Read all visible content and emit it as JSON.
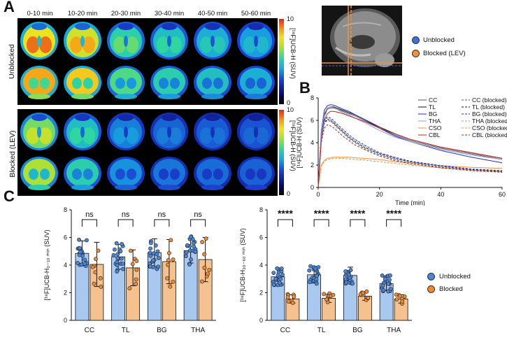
{
  "panel_labels": {
    "a": "A",
    "b": "B",
    "c": "C"
  },
  "panel_a": {
    "time_labels": [
      "0-10 min",
      "10-20 min",
      "20-30 min",
      "30-40 min",
      "40-50 min",
      "50-60 min"
    ],
    "row_labels": [
      "Unblocked",
      "Blocked (LEV)"
    ],
    "colorbar": {
      "max": "10",
      "min": "0",
      "label": "[¹⁸F]UCB-H (SUV)"
    },
    "heat_levels_top": [
      0.95,
      0.9,
      0.62,
      0.55,
      0.5,
      0.45
    ],
    "heat_levels_bottom": [
      0.75,
      0.55,
      0.38,
      0.32,
      0.3,
      0.28
    ]
  },
  "panel_b_legend": {
    "unblocked": "Unblocked",
    "blocked": "Blocked (LEV)",
    "unblocked_color": "#3f6fd9",
    "blocked_color": "#f0923a"
  },
  "chart_data": [
    {
      "type": "line",
      "ylabel": "[¹⁸F]UCB-H (SUV)",
      "xlabel": "Time (min)",
      "xlim": [
        0,
        60
      ],
      "ylim": [
        0,
        8
      ],
      "xticks": [
        "0",
        "20",
        "40",
        "60"
      ],
      "yticks": [
        "0",
        "2",
        "4",
        "6",
        "8"
      ],
      "x": [
        0,
        1,
        2,
        3,
        4,
        5,
        6,
        8,
        10,
        12,
        15,
        20,
        25,
        30,
        40,
        50,
        60
      ],
      "series": [
        {
          "name": "CC",
          "color": "#555555",
          "dash": false,
          "values": [
            0,
            4.5,
            6.4,
            7.0,
            7.1,
            7.1,
            7.0,
            6.8,
            6.6,
            6.4,
            6.0,
            5.3,
            4.7,
            4.2,
            3.5,
            3.0,
            2.5
          ]
        },
        {
          "name": "TL",
          "color": "#111111",
          "dash": false,
          "values": [
            0,
            4.6,
            6.5,
            7.1,
            7.2,
            7.2,
            7.1,
            6.9,
            6.7,
            6.5,
            6.1,
            5.4,
            4.8,
            4.3,
            3.6,
            3.1,
            2.6
          ]
        },
        {
          "name": "BG",
          "color": "#2a2ad6",
          "dash": false,
          "values": [
            0,
            5.0,
            6.9,
            7.3,
            7.4,
            7.35,
            7.25,
            7.0,
            6.8,
            6.5,
            6.1,
            5.3,
            4.6,
            4.1,
            3.3,
            2.7,
            2.2
          ]
        },
        {
          "name": "THA",
          "color": "#8aa3c8",
          "dash": false,
          "values": [
            0,
            4.8,
            6.6,
            7.1,
            7.2,
            7.15,
            7.0,
            6.7,
            6.5,
            6.2,
            5.8,
            5.1,
            4.5,
            4.1,
            3.4,
            2.9,
            2.5
          ]
        },
        {
          "name": "CSO",
          "color": "#f0923a",
          "dash": false,
          "values": [
            0,
            2.0,
            2.4,
            2.6,
            2.65,
            2.7,
            2.7,
            2.7,
            2.7,
            2.65,
            2.6,
            2.5,
            2.3,
            2.2,
            1.95,
            1.8,
            1.7
          ]
        },
        {
          "name": "CBL",
          "color": "#c0201b",
          "dash": false,
          "values": [
            0,
            4.2,
            6.0,
            6.6,
            6.8,
            6.8,
            6.75,
            6.6,
            6.4,
            6.2,
            5.9,
            5.3,
            4.8,
            4.3,
            3.6,
            3.1,
            2.6
          ]
        },
        {
          "name": "CC (blocked)",
          "color": "#555555",
          "dash": true,
          "values": [
            0,
            4.3,
            5.7,
            6.0,
            5.9,
            5.7,
            5.4,
            4.9,
            4.4,
            4.0,
            3.5,
            2.9,
            2.5,
            2.2,
            1.8,
            1.55,
            1.4
          ]
        },
        {
          "name": "TL (blocked)",
          "color": "#111111",
          "dash": true,
          "values": [
            0,
            4.4,
            5.8,
            6.1,
            6.0,
            5.8,
            5.5,
            5.0,
            4.5,
            4.1,
            3.6,
            3.0,
            2.6,
            2.3,
            1.9,
            1.6,
            1.45
          ]
        },
        {
          "name": "BG (blocked)",
          "color": "#2a2ad6",
          "dash": true,
          "values": [
            0,
            4.6,
            6.0,
            6.3,
            6.2,
            6.0,
            5.7,
            5.2,
            4.7,
            4.3,
            3.8,
            3.1,
            2.7,
            2.35,
            1.95,
            1.65,
            1.5
          ]
        },
        {
          "name": "THA (blocked)",
          "color": "#8aa3c8",
          "dash": true,
          "values": [
            0,
            4.5,
            5.9,
            6.2,
            6.1,
            5.9,
            5.6,
            5.1,
            4.6,
            4.2,
            3.7,
            3.05,
            2.65,
            2.3,
            1.9,
            1.6,
            1.45
          ]
        },
        {
          "name": "CSO (blocked)",
          "color": "#f0923a",
          "dash": true,
          "values": [
            0,
            1.9,
            2.3,
            2.5,
            2.55,
            2.6,
            2.6,
            2.6,
            2.55,
            2.5,
            2.45,
            2.3,
            2.15,
            2.0,
            1.75,
            1.55,
            1.4
          ]
        },
        {
          "name": "CBL (blocked)",
          "color": "#c0201b",
          "dash": true,
          "values": [
            0,
            4.0,
            5.3,
            5.6,
            5.5,
            5.35,
            5.1,
            4.6,
            4.2,
            3.8,
            3.4,
            2.8,
            2.4,
            2.1,
            1.75,
            1.5,
            1.35
          ]
        }
      ]
    },
    {
      "type": "bar",
      "ylabel": "[¹⁸F]UCB-H₀₋₁₀ ₘᵢₙ (SUV)",
      "ylim": [
        0,
        8
      ],
      "yticks": [
        "0",
        "2",
        "4",
        "6",
        "8"
      ],
      "categories": [
        "CC",
        "TL",
        "BG",
        "THA"
      ],
      "series": [
        {
          "name": "Unblocked",
          "color": "#a9c8ef",
          "dot_color": "#4a86d8",
          "values": [
            4.85,
            4.6,
            4.9,
            5.05
          ],
          "errors": [
            0.9,
            0.9,
            1.0,
            0.9
          ]
        },
        {
          "name": "Blocked",
          "color": "#f5c18f",
          "dot_color": "#f08a30",
          "values": [
            4.05,
            3.8,
            4.25,
            4.4
          ],
          "errors": [
            1.6,
            1.3,
            1.6,
            1.6
          ]
        }
      ],
      "significance": [
        "ns",
        "ns",
        "ns",
        "ns"
      ]
    },
    {
      "type": "bar",
      "ylabel": "[¹⁸F]UCB-H₃₀₋₆₀ ₘᵢₙ (SUV)",
      "ylim": [
        0,
        8
      ],
      "yticks": [
        "0",
        "2",
        "4",
        "6",
        "8"
      ],
      "categories": [
        "CC",
        "TL",
        "BG",
        "THA"
      ],
      "series": [
        {
          "name": "Unblocked",
          "color": "#a9c8ef",
          "dot_color": "#4a86d8",
          "values": [
            3.15,
            3.3,
            3.25,
            2.65
          ],
          "errors": [
            0.6,
            0.6,
            0.6,
            0.5
          ]
        },
        {
          "name": "Blocked",
          "color": "#f5c18f",
          "dot_color": "#f08a30",
          "values": [
            1.55,
            1.6,
            1.75,
            1.55
          ],
          "errors": [
            0.3,
            0.3,
            0.3,
            0.3
          ]
        }
      ],
      "significance": [
        "****",
        "****",
        "****",
        "****"
      ]
    }
  ],
  "panel_c_legend": {
    "unblocked": "Unblocked",
    "blocked": "Blocked"
  }
}
